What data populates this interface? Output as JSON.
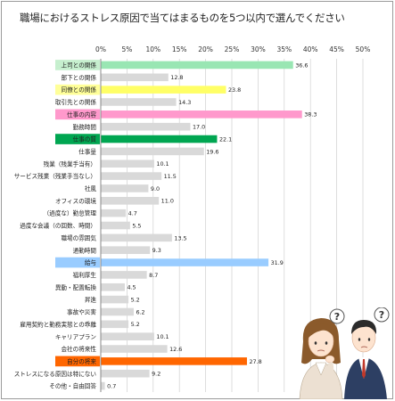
{
  "chart_data": {
    "type": "bar",
    "orientation": "horizontal",
    "title": "職場におけるストレス原因で当てはまるものを5つ以内で選んでください",
    "xlim": [
      0,
      50
    ],
    "ticks": [
      "0%",
      "5%",
      "10%",
      "15%",
      "20%",
      "25%",
      "30%",
      "35%",
      "40%",
      "45%",
      "50%"
    ],
    "grid": true,
    "categories": [
      "上司との関係",
      "部下との関係",
      "同僚との関係",
      "取引先との関係",
      "仕事の内容",
      "勤務時間",
      "仕事の質",
      "仕事量",
      "残業（残業手当有）",
      "サービス残業（残業手当なし）",
      "社風",
      "オフィスの環境",
      "（過度な）勤怠管理",
      "過度な会議（の回数、時間）",
      "職場の雰囲気",
      "通勤時間",
      "給与",
      "福利厚生",
      "異動・配置転換",
      "昇進",
      "事故や災害",
      "雇用契約と勤務実態との乖離",
      "キャリアプラン",
      "会社の将来性",
      "自分の将来",
      "ストレスになる原因は特にない",
      "その他・自由回答"
    ],
    "values": [
      36.6,
      12.8,
      23.8,
      14.3,
      38.3,
      17.0,
      22.1,
      19.6,
      10.1,
      11.5,
      9.0,
      11.0,
      4.7,
      5.5,
      13.5,
      9.3,
      31.9,
      8.7,
      4.5,
      5.2,
      6.2,
      5.2,
      10.1,
      12.6,
      27.8,
      9.2,
      0.7
    ],
    "value_labels": [
      "36.6",
      "12.8",
      "23.8",
      "14.3",
      "38.3",
      "17.0",
      "22.1",
      "19.6",
      "10.1",
      "11.5",
      "9.0",
      "11.0",
      "4.7",
      "5.5",
      "13.5",
      "9.3",
      "31.9",
      "8.7",
      "4.5",
      "5.2",
      "6.2",
      "5.2",
      "10.1",
      "12.6",
      "27.8",
      "9.2",
      "0.7"
    ],
    "colors": [
      "#99e6b3",
      "#d9d9d9",
      "#ffff66",
      "#d9d9d9",
      "#ff99cc",
      "#d9d9d9",
      "#00a651",
      "#d9d9d9",
      "#d9d9d9",
      "#d9d9d9",
      "#d9d9d9",
      "#d9d9d9",
      "#d9d9d9",
      "#d9d9d9",
      "#d9d9d9",
      "#d9d9d9",
      "#99ccff",
      "#d9d9d9",
      "#d9d9d9",
      "#d9d9d9",
      "#d9d9d9",
      "#d9d9d9",
      "#d9d9d9",
      "#d9d9d9",
      "#ff6600",
      "#d9d9d9",
      "#d9d9d9"
    ],
    "highlight_label_colors": [
      "#c6efce",
      null,
      "#ffff99",
      null,
      "#ff99cc",
      null,
      "#00a651",
      null,
      null,
      null,
      null,
      null,
      null,
      null,
      null,
      null,
      "#99ccff",
      null,
      null,
      null,
      null,
      null,
      null,
      null,
      "#ff6600",
      null,
      null
    ]
  },
  "illustration": {
    "icons": [
      "woman-thinking-icon",
      "man-thinking-icon",
      "question-mark-icon"
    ]
  }
}
